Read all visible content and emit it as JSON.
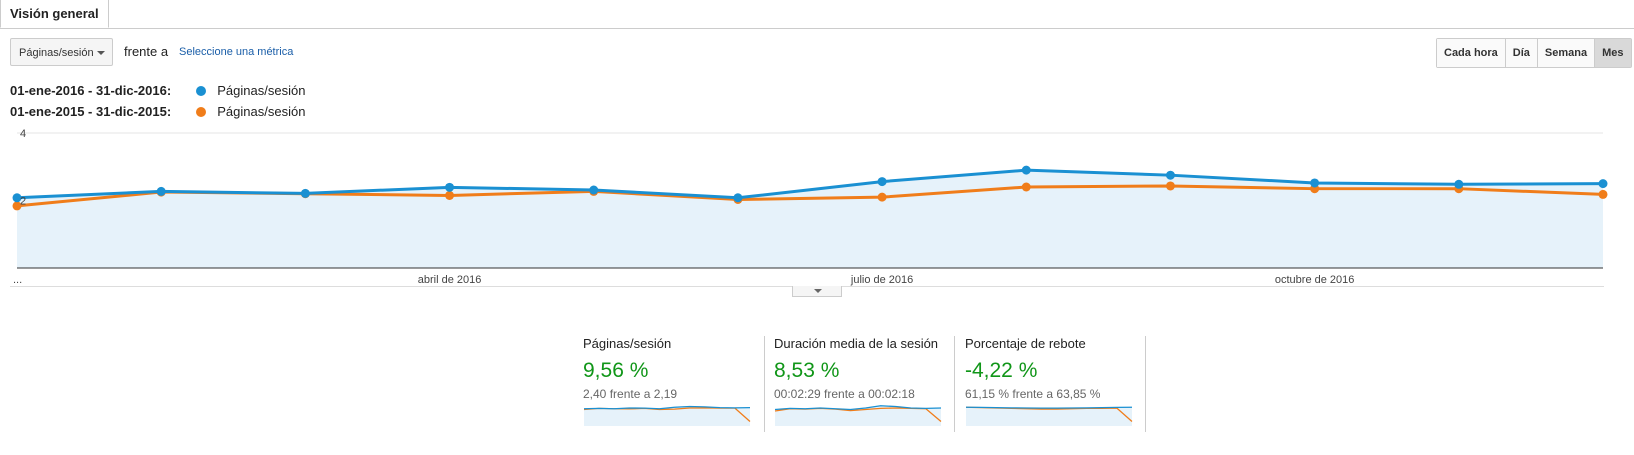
{
  "tabs": [
    {
      "label": "Visión general"
    }
  ],
  "controls": {
    "metric_select": "Páginas/sesión",
    "vs_label": "frente a",
    "select_metric_link": "Seleccione una métrica",
    "granularity": [
      {
        "label": "Cada hora",
        "active": false
      },
      {
        "label": "Día",
        "active": false
      },
      {
        "label": "Semana",
        "active": false
      },
      {
        "label": "Mes",
        "active": true
      }
    ]
  },
  "legend": [
    {
      "range": "01-ene-2016 - 31-dic-2016:",
      "series": "Páginas/sesión",
      "color": "#1a90d2"
    },
    {
      "range": "01-ene-2015 - 31-dic-2015:",
      "series": "Páginas/sesión",
      "color": "#f07d1a"
    }
  ],
  "chart_data": {
    "type": "line",
    "ylim": [
      0,
      4
    ],
    "y_ticks": [
      {
        "label": "4",
        "value": 4
      },
      {
        "label": "2",
        "value": 2
      }
    ],
    "x_labels": [
      "...",
      "abril de 2016",
      "julio de 2016",
      "octubre de 2016"
    ],
    "x_label_index": [
      0,
      3,
      6,
      9
    ],
    "grid": true,
    "series": [
      {
        "color": "#1a90d2",
        "values": [
          2.08,
          2.27,
          2.21,
          2.39,
          2.31,
          2.08,
          2.56,
          2.9,
          2.75,
          2.52,
          2.48,
          2.5
        ]
      },
      {
        "color": "#f07d1a",
        "values": [
          1.84,
          2.25,
          2.2,
          2.15,
          2.27,
          2.03,
          2.1,
          2.4,
          2.43,
          2.35,
          2.35,
          2.18
        ]
      }
    ]
  },
  "scorecards": [
    {
      "name": "Páginas/sesión",
      "change": "9,56 %",
      "comparison": "2,40 frente a 2,19",
      "spark_current": [
        2.3,
        2.35,
        2.3,
        2.4,
        2.38,
        2.3,
        2.5,
        2.6,
        2.55,
        2.45,
        2.42,
        2.45
      ],
      "spark_previous": [
        2.2,
        2.35,
        2.3,
        2.28,
        2.35,
        2.2,
        2.25,
        2.4,
        2.42,
        2.38,
        2.38,
        0.6
      ]
    },
    {
      "name": "Duración media de la sesión",
      "change": "8,53 %",
      "comparison": "00:02:29 frente a 00:02:18",
      "spark_current": [
        2.2,
        2.35,
        2.3,
        2.4,
        2.3,
        2.2,
        2.4,
        2.7,
        2.6,
        2.4,
        2.35,
        2.4
      ],
      "spark_previous": [
        2.0,
        2.3,
        2.25,
        2.35,
        2.25,
        2.05,
        2.2,
        2.35,
        2.4,
        2.35,
        2.3,
        0.6
      ]
    },
    {
      "name": "Porcentaje de rebote",
      "change": "-4,22 %",
      "comparison": "61,15 % frente a 63,85 %",
      "spark_current": [
        2.5,
        2.48,
        2.45,
        2.42,
        2.4,
        2.38,
        2.38,
        2.4,
        2.42,
        2.45,
        2.48,
        2.5
      ],
      "spark_previous": [
        2.5,
        2.45,
        2.4,
        2.35,
        2.3,
        2.25,
        2.25,
        2.3,
        2.35,
        2.35,
        2.38,
        0.6
      ]
    }
  ]
}
